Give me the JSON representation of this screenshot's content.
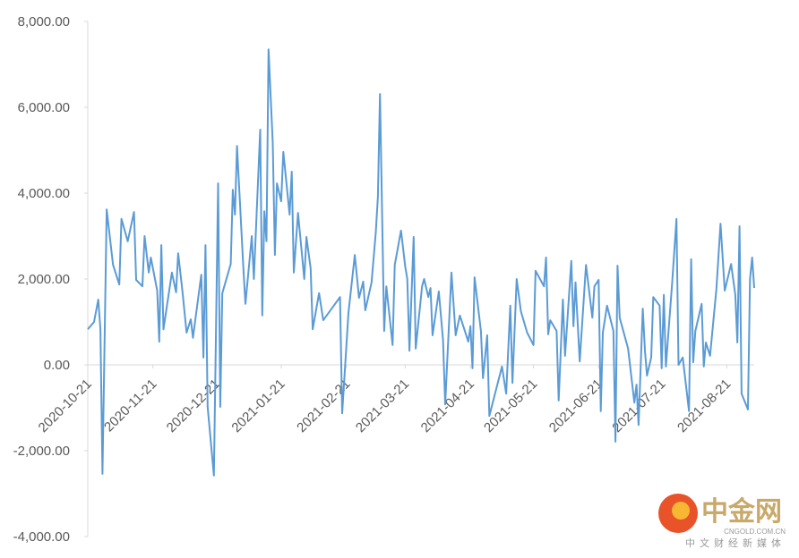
{
  "chart_data": {
    "type": "line",
    "x": [
      "2020-10-21",
      "2020-10-24",
      "2020-10-26",
      "2020-10-27",
      "2020-10-28",
      "2020-10-30",
      "2020-11-02",
      "2020-11-05",
      "2020-11-06",
      "2020-11-09",
      "2020-11-12",
      "2020-11-13",
      "2020-11-16",
      "2020-11-17",
      "2020-11-19",
      "2020-11-20",
      "2020-11-23",
      "2020-11-24",
      "2020-11-25",
      "2020-11-26",
      "2020-11-30",
      "2020-12-02",
      "2020-12-03",
      "2020-12-05",
      "2020-12-07",
      "2020-12-09",
      "2020-12-10",
      "2020-12-14",
      "2020-12-15",
      "2020-12-16",
      "2020-12-17",
      "2020-12-20",
      "2020-12-22",
      "2020-12-23",
      "2020-12-24",
      "2020-12-28",
      "2020-12-29",
      "2020-12-30",
      "2020-12-31",
      "2021-01-03",
      "2021-01-04",
      "2021-01-07",
      "2021-01-08",
      "2021-01-11",
      "2021-01-12",
      "2021-01-13",
      "2021-01-14",
      "2021-01-15",
      "2021-01-17",
      "2021-01-18",
      "2021-01-19",
      "2021-01-21",
      "2021-01-22",
      "2021-01-25",
      "2021-01-26",
      "2021-01-27",
      "2021-01-29",
      "2021-02-01",
      "2021-02-02",
      "2021-02-04",
      "2021-02-05",
      "2021-02-08",
      "2021-02-10",
      "2021-02-18",
      "2021-02-19",
      "2021-02-22",
      "2021-02-25",
      "2021-02-27",
      "2021-03-01",
      "2021-03-02",
      "2021-03-05",
      "2021-03-07",
      "2021-03-08",
      "2021-03-09",
      "2021-03-11",
      "2021-03-12",
      "2021-03-15",
      "2021-03-16",
      "2021-03-19",
      "2021-03-21",
      "2021-03-22",
      "2021-03-23",
      "2021-03-25",
      "2021-03-26",
      "2021-03-29",
      "2021-03-30",
      "2021-04-01",
      "2021-04-02",
      "2021-04-03",
      "2021-04-06",
      "2021-04-08",
      "2021-04-09",
      "2021-04-12",
      "2021-04-14",
      "2021-04-16",
      "2021-04-20",
      "2021-04-21",
      "2021-04-22",
      "2021-04-23",
      "2021-04-26",
      "2021-04-27",
      "2021-04-29",
      "2021-04-30",
      "2021-05-06",
      "2021-05-08",
      "2021-05-10",
      "2021-05-11",
      "2021-05-13",
      "2021-05-15",
      "2021-05-18",
      "2021-05-21",
      "2021-05-22",
      "2021-05-26",
      "2021-05-27",
      "2021-05-28",
      "2021-05-29",
      "2021-06-01",
      "2021-06-02",
      "2021-06-04",
      "2021-06-05",
      "2021-06-08",
      "2021-06-09",
      "2021-06-10",
      "2021-06-12",
      "2021-06-15",
      "2021-06-18",
      "2021-06-19",
      "2021-06-21",
      "2021-06-22",
      "2021-06-23",
      "2021-06-25",
      "2021-06-28",
      "2021-06-29",
      "2021-06-30",
      "2021-07-01",
      "2021-07-05",
      "2021-07-08",
      "2021-07-09",
      "2021-07-10",
      "2021-07-12",
      "2021-07-13",
      "2021-07-14",
      "2021-07-16",
      "2021-07-17",
      "2021-07-20",
      "2021-07-21",
      "2021-07-22",
      "2021-07-23",
      "2021-07-26",
      "2021-07-28",
      "2021-07-29",
      "2021-07-31",
      "2021-08-03",
      "2021-08-04",
      "2021-08-05",
      "2021-08-06",
      "2021-08-09",
      "2021-08-10",
      "2021-08-11",
      "2021-08-13",
      "2021-08-16",
      "2021-08-18",
      "2021-08-20",
      "2021-08-23",
      "2021-08-25",
      "2021-08-26",
      "2021-08-27",
      "2021-08-28",
      "2021-08-31",
      "2021-09-01",
      "2021-09-02",
      "2021-09-03"
    ],
    "series": [
      {
        "name": "value",
        "color": "#5b9bd5",
        "values": [
          830,
          1000,
          1520,
          830,
          -2540,
          3620,
          2330,
          1870,
          3400,
          2880,
          3560,
          1980,
          1830,
          3000,
          2150,
          2500,
          1730,
          540,
          2790,
          830,
          2150,
          1690,
          2600,
          1730,
          750,
          1060,
          630,
          2100,
          170,
          2790,
          -980,
          -2580,
          4230,
          -980,
          1670,
          2350,
          4080,
          3500,
          5100,
          2250,
          1420,
          3000,
          2000,
          5480,
          1150,
          3580,
          2880,
          7350,
          5170,
          2560,
          4230,
          3810,
          4960,
          3500,
          4500,
          2150,
          3540,
          2000,
          2980,
          2250,
          830,
          1670,
          1040,
          1580,
          -1130,
          1210,
          2560,
          1560,
          1940,
          1270,
          1920,
          3080,
          3920,
          6310,
          790,
          1830,
          460,
          2330,
          3130,
          2290,
          2000,
          330,
          2980,
          380,
          1830,
          2000,
          1580,
          1790,
          690,
          1710,
          580,
          -920,
          2150,
          690,
          1150,
          540,
          900,
          -80,
          2040,
          790,
          -310,
          690,
          -1190,
          -40,
          -670,
          1380,
          -420,
          2000,
          1250,
          750,
          460,
          2190,
          1830,
          2500,
          710,
          1040,
          790,
          -830,
          1520,
          210,
          2420,
          900,
          1920,
          80,
          2330,
          1100,
          1830,
          1980,
          -1080,
          750,
          1380,
          790,
          -1790,
          2310,
          1100,
          380,
          -880,
          -460,
          -1400,
          1310,
          330,
          -250,
          170,
          1580,
          1380,
          -80,
          1630,
          -40,
          1940,
          3400,
          0,
          170,
          -1080,
          2460,
          60,
          790,
          1420,
          -40,
          520,
          210,
          1770,
          3290,
          1730,
          2350,
          1630,
          520,
          3230,
          -670,
          -1040,
          2000,
          2500,
          1790
        ]
      }
    ],
    "xlim": [
      "2020-10-21",
      "2021-09-03"
    ],
    "xticks": [
      "2020-10-21",
      "2020-11-21",
      "2020-12-21",
      "2021-01-21",
      "2021-02-21",
      "2021-03-21",
      "2021-04-21",
      "2021-05-21",
      "2021-06-21",
      "2021-07-21",
      "2021-08-21"
    ],
    "ylim": [
      -4000,
      8000
    ],
    "yticks": [
      {
        "value": -4000,
        "label": "-4,000.00"
      },
      {
        "value": -2000,
        "label": "-2,000.00"
      },
      {
        "value": 0,
        "label": "0.00"
      },
      {
        "value": 2000,
        "label": "2,000.00"
      },
      {
        "value": 4000,
        "label": "4,000.00"
      },
      {
        "value": 6000,
        "label": "6,000.00"
      },
      {
        "value": 8000,
        "label": "8,000.00"
      }
    ]
  },
  "watermark": {
    "brand": "中金网",
    "domain": "CNGOLD.COM.CN",
    "slogan": "中文财经新媒体"
  }
}
